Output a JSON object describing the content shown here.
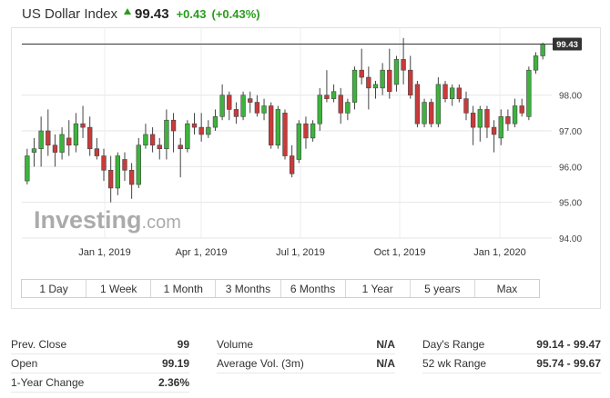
{
  "header": {
    "title": "US Dollar Index",
    "price": "99.43",
    "change": "+0.43",
    "change_pct": "(+0.43%)",
    "up_color": "#2a9c1c"
  },
  "watermark": {
    "brand": "Investing",
    "suffix": ".com"
  },
  "chart_data": {
    "type": "candlestick",
    "xlabel": "",
    "ylabel": "",
    "x_ticks": [
      "Jan 1, 2019",
      "Apr 1, 2019",
      "Jul 1, 2019",
      "Oct 1, 2019",
      "Jan 1, 2020"
    ],
    "y_ticks": [
      "94.00",
      "95.00",
      "96.00",
      "97.00",
      "98.00"
    ],
    "ylim": [
      94.0,
      99.9
    ],
    "last_price_label": "99.43",
    "up_color": "#3db33d",
    "down_color": "#c93a3a",
    "series": [
      {
        "o": 95.6,
        "c": 96.3,
        "h": 96.5,
        "l": 95.5
      },
      {
        "o": 96.4,
        "c": 96.5,
        "h": 96.8,
        "l": 96.0
      },
      {
        "o": 96.5,
        "c": 97.0,
        "h": 97.4,
        "l": 96.0
      },
      {
        "o": 97.0,
        "c": 96.6,
        "h": 97.6,
        "l": 96.3
      },
      {
        "o": 96.6,
        "c": 96.4,
        "h": 96.9,
        "l": 96.0
      },
      {
        "o": 96.4,
        "c": 96.9,
        "h": 97.1,
        "l": 96.2
      },
      {
        "o": 96.8,
        "c": 96.6,
        "h": 97.3,
        "l": 96.3
      },
      {
        "o": 96.6,
        "c": 97.2,
        "h": 97.5,
        "l": 96.4
      },
      {
        "o": 97.2,
        "c": 97.1,
        "h": 97.7,
        "l": 96.8
      },
      {
        "o": 97.1,
        "c": 96.5,
        "h": 97.4,
        "l": 96.3
      },
      {
        "o": 96.5,
        "c": 96.3,
        "h": 96.8,
        "l": 96.2
      },
      {
        "o": 96.3,
        "c": 95.9,
        "h": 96.5,
        "l": 95.6
      },
      {
        "o": 95.9,
        "c": 95.4,
        "h": 96.3,
        "l": 95.0
      },
      {
        "o": 95.4,
        "c": 96.3,
        "h": 96.4,
        "l": 95.2
      },
      {
        "o": 96.2,
        "c": 95.9,
        "h": 96.4,
        "l": 95.6
      },
      {
        "o": 95.9,
        "c": 95.5,
        "h": 96.1,
        "l": 95.1
      },
      {
        "o": 95.5,
        "c": 96.6,
        "h": 96.8,
        "l": 95.4
      },
      {
        "o": 96.6,
        "c": 96.9,
        "h": 97.2,
        "l": 96.5
      },
      {
        "o": 96.9,
        "c": 96.6,
        "h": 97.1,
        "l": 96.4
      },
      {
        "o": 96.6,
        "c": 96.5,
        "h": 96.8,
        "l": 96.2
      },
      {
        "o": 96.5,
        "c": 97.3,
        "h": 97.6,
        "l": 96.2
      },
      {
        "o": 97.3,
        "c": 97.0,
        "h": 97.5,
        "l": 96.4
      },
      {
        "o": 96.6,
        "c": 96.5,
        "h": 96.8,
        "l": 95.7
      },
      {
        "o": 96.5,
        "c": 97.2,
        "h": 97.3,
        "l": 96.4
      },
      {
        "o": 97.2,
        "c": 97.1,
        "h": 97.5,
        "l": 96.9
      },
      {
        "o": 97.1,
        "c": 96.9,
        "h": 97.5,
        "l": 96.7
      },
      {
        "o": 96.9,
        "c": 97.1,
        "h": 97.3,
        "l": 96.8
      },
      {
        "o": 97.1,
        "c": 97.4,
        "h": 97.6,
        "l": 97.0
      },
      {
        "o": 97.4,
        "c": 98.0,
        "h": 98.3,
        "l": 97.3
      },
      {
        "o": 98.0,
        "c": 97.6,
        "h": 98.1,
        "l": 97.3
      },
      {
        "o": 97.6,
        "c": 97.4,
        "h": 97.8,
        "l": 97.2
      },
      {
        "o": 97.4,
        "c": 98.0,
        "h": 98.1,
        "l": 97.3
      },
      {
        "o": 97.9,
        "c": 97.8,
        "h": 98.1,
        "l": 97.5
      },
      {
        "o": 97.8,
        "c": 97.5,
        "h": 98.0,
        "l": 97.4
      },
      {
        "o": 97.5,
        "c": 97.7,
        "h": 97.9,
        "l": 97.3
      },
      {
        "o": 97.7,
        "c": 96.6,
        "h": 97.8,
        "l": 96.5
      },
      {
        "o": 96.6,
        "c": 97.6,
        "h": 97.7,
        "l": 96.5
      },
      {
        "o": 97.5,
        "c": 96.3,
        "h": 97.6,
        "l": 96.2
      },
      {
        "o": 96.3,
        "c": 95.8,
        "h": 96.6,
        "l": 95.7
      },
      {
        "o": 96.2,
        "c": 97.2,
        "h": 97.3,
        "l": 96.1
      },
      {
        "o": 97.2,
        "c": 96.8,
        "h": 97.4,
        "l": 96.5
      },
      {
        "o": 96.8,
        "c": 97.2,
        "h": 97.3,
        "l": 96.7
      },
      {
        "o": 97.2,
        "c": 98.0,
        "h": 98.2,
        "l": 97.0
      },
      {
        "o": 98.0,
        "c": 97.9,
        "h": 98.7,
        "l": 97.8
      },
      {
        "o": 97.9,
        "c": 98.1,
        "h": 98.3,
        "l": 97.8
      },
      {
        "o": 98.0,
        "c": 97.5,
        "h": 98.2,
        "l": 97.2
      },
      {
        "o": 97.5,
        "c": 97.8,
        "h": 97.9,
        "l": 97.3
      },
      {
        "o": 97.8,
        "c": 98.7,
        "h": 98.8,
        "l": 97.6
      },
      {
        "o": 98.7,
        "c": 98.5,
        "h": 99.3,
        "l": 98.3
      },
      {
        "o": 98.5,
        "c": 98.2,
        "h": 98.8,
        "l": 97.6
      },
      {
        "o": 98.2,
        "c": 98.3,
        "h": 98.4,
        "l": 97.9
      },
      {
        "o": 98.2,
        "c": 98.7,
        "h": 98.9,
        "l": 98.0
      },
      {
        "o": 98.7,
        "c": 98.1,
        "h": 99.3,
        "l": 97.9
      },
      {
        "o": 98.3,
        "c": 99.0,
        "h": 99.1,
        "l": 98.1
      },
      {
        "o": 99.0,
        "c": 98.7,
        "h": 99.6,
        "l": 98.3
      },
      {
        "o": 98.7,
        "c": 98.0,
        "h": 99.1,
        "l": 97.9
      },
      {
        "o": 98.3,
        "c": 97.2,
        "h": 98.4,
        "l": 97.1
      },
      {
        "o": 97.2,
        "c": 97.8,
        "h": 97.9,
        "l": 97.1
      },
      {
        "o": 97.8,
        "c": 97.2,
        "h": 97.9,
        "l": 97.1
      },
      {
        "o": 97.2,
        "c": 98.3,
        "h": 98.5,
        "l": 97.1
      },
      {
        "o": 98.3,
        "c": 97.9,
        "h": 98.4,
        "l": 97.8
      },
      {
        "o": 97.9,
        "c": 98.2,
        "h": 98.3,
        "l": 97.7
      },
      {
        "o": 98.2,
        "c": 97.9,
        "h": 98.3,
        "l": 97.8
      },
      {
        "o": 97.9,
        "c": 97.5,
        "h": 98.1,
        "l": 97.3
      },
      {
        "o": 97.5,
        "c": 97.1,
        "h": 97.7,
        "l": 96.6
      },
      {
        "o": 97.1,
        "c": 97.6,
        "h": 97.7,
        "l": 96.7
      },
      {
        "o": 97.6,
        "c": 97.1,
        "h": 97.7,
        "l": 96.8
      },
      {
        "o": 97.1,
        "c": 96.9,
        "h": 97.3,
        "l": 96.4
      },
      {
        "o": 96.8,
        "c": 97.4,
        "h": 97.6,
        "l": 96.6
      },
      {
        "o": 97.4,
        "c": 97.2,
        "h": 97.6,
        "l": 97.0
      },
      {
        "o": 97.2,
        "c": 97.7,
        "h": 97.9,
        "l": 97.1
      },
      {
        "o": 97.7,
        "c": 97.5,
        "h": 97.9,
        "l": 97.4
      },
      {
        "o": 97.4,
        "c": 98.7,
        "h": 98.8,
        "l": 97.3
      },
      {
        "o": 98.7,
        "c": 99.1,
        "h": 99.2,
        "l": 98.6
      },
      {
        "o": 99.1,
        "c": 99.43,
        "h": 99.47,
        "l": 99.0
      }
    ]
  },
  "ranges": [
    "1 Day",
    "1 Week",
    "1 Month",
    "3 Months",
    "6 Months",
    "1 Year",
    "5 years",
    "Max"
  ],
  "stats": {
    "col1": [
      {
        "label": "Prev. Close",
        "value": "99"
      },
      {
        "label": "Open",
        "value": "99.19"
      },
      {
        "label": "1-Year Change",
        "value": "2.36%"
      }
    ],
    "col2": [
      {
        "label": "Volume",
        "value": "N/A"
      },
      {
        "label": "Average Vol. (3m)",
        "value": "N/A"
      }
    ],
    "col3": [
      {
        "label": "Day's Range",
        "value": "99.14 - 99.47"
      },
      {
        "label": "52 wk Range",
        "value": "95.74 - 99.67"
      }
    ]
  }
}
